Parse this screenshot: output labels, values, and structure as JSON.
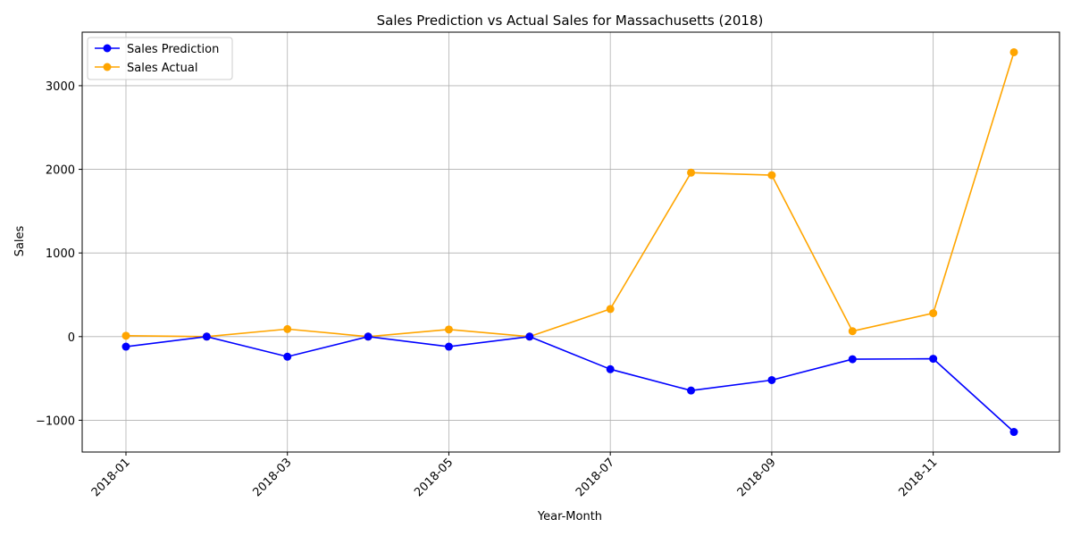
{
  "chart_data": {
    "type": "line",
    "title": "Sales Prediction vs Actual Sales for Massachusetts (2018)",
    "xlabel": "Year-Month",
    "ylabel": "Sales",
    "x": [
      "2018-01",
      "2018-02",
      "2018-03",
      "2018-04",
      "2018-05",
      "2018-06",
      "2018-07",
      "2018-08",
      "2018-09",
      "2018-10",
      "2018-11",
      "2018-12"
    ],
    "x_tick_labels": [
      "2018-01",
      "2018-03",
      "2018-05",
      "2018-07",
      "2018-09",
      "2018-11"
    ],
    "y_ticks": [
      -1000,
      0,
      1000,
      2000,
      3000
    ],
    "y_tick_labels": [
      "−1000",
      "0",
      "1000",
      "2000",
      "3000"
    ],
    "ylim": [
      -1380,
      3640
    ],
    "grid": true,
    "legend_position": "top-left",
    "series": [
      {
        "name": "Sales Prediction",
        "color": "#0000ff",
        "marker": "circle",
        "values": [
          -120,
          0,
          -240,
          0,
          -120,
          0,
          -390,
          -645,
          -520,
          -270,
          -265,
          -1140
        ]
      },
      {
        "name": "Sales Actual",
        "color": "#ffa500",
        "marker": "circle",
        "values": [
          10,
          0,
          90,
          0,
          85,
          0,
          330,
          1960,
          1930,
          65,
          280,
          3400
        ]
      }
    ]
  }
}
